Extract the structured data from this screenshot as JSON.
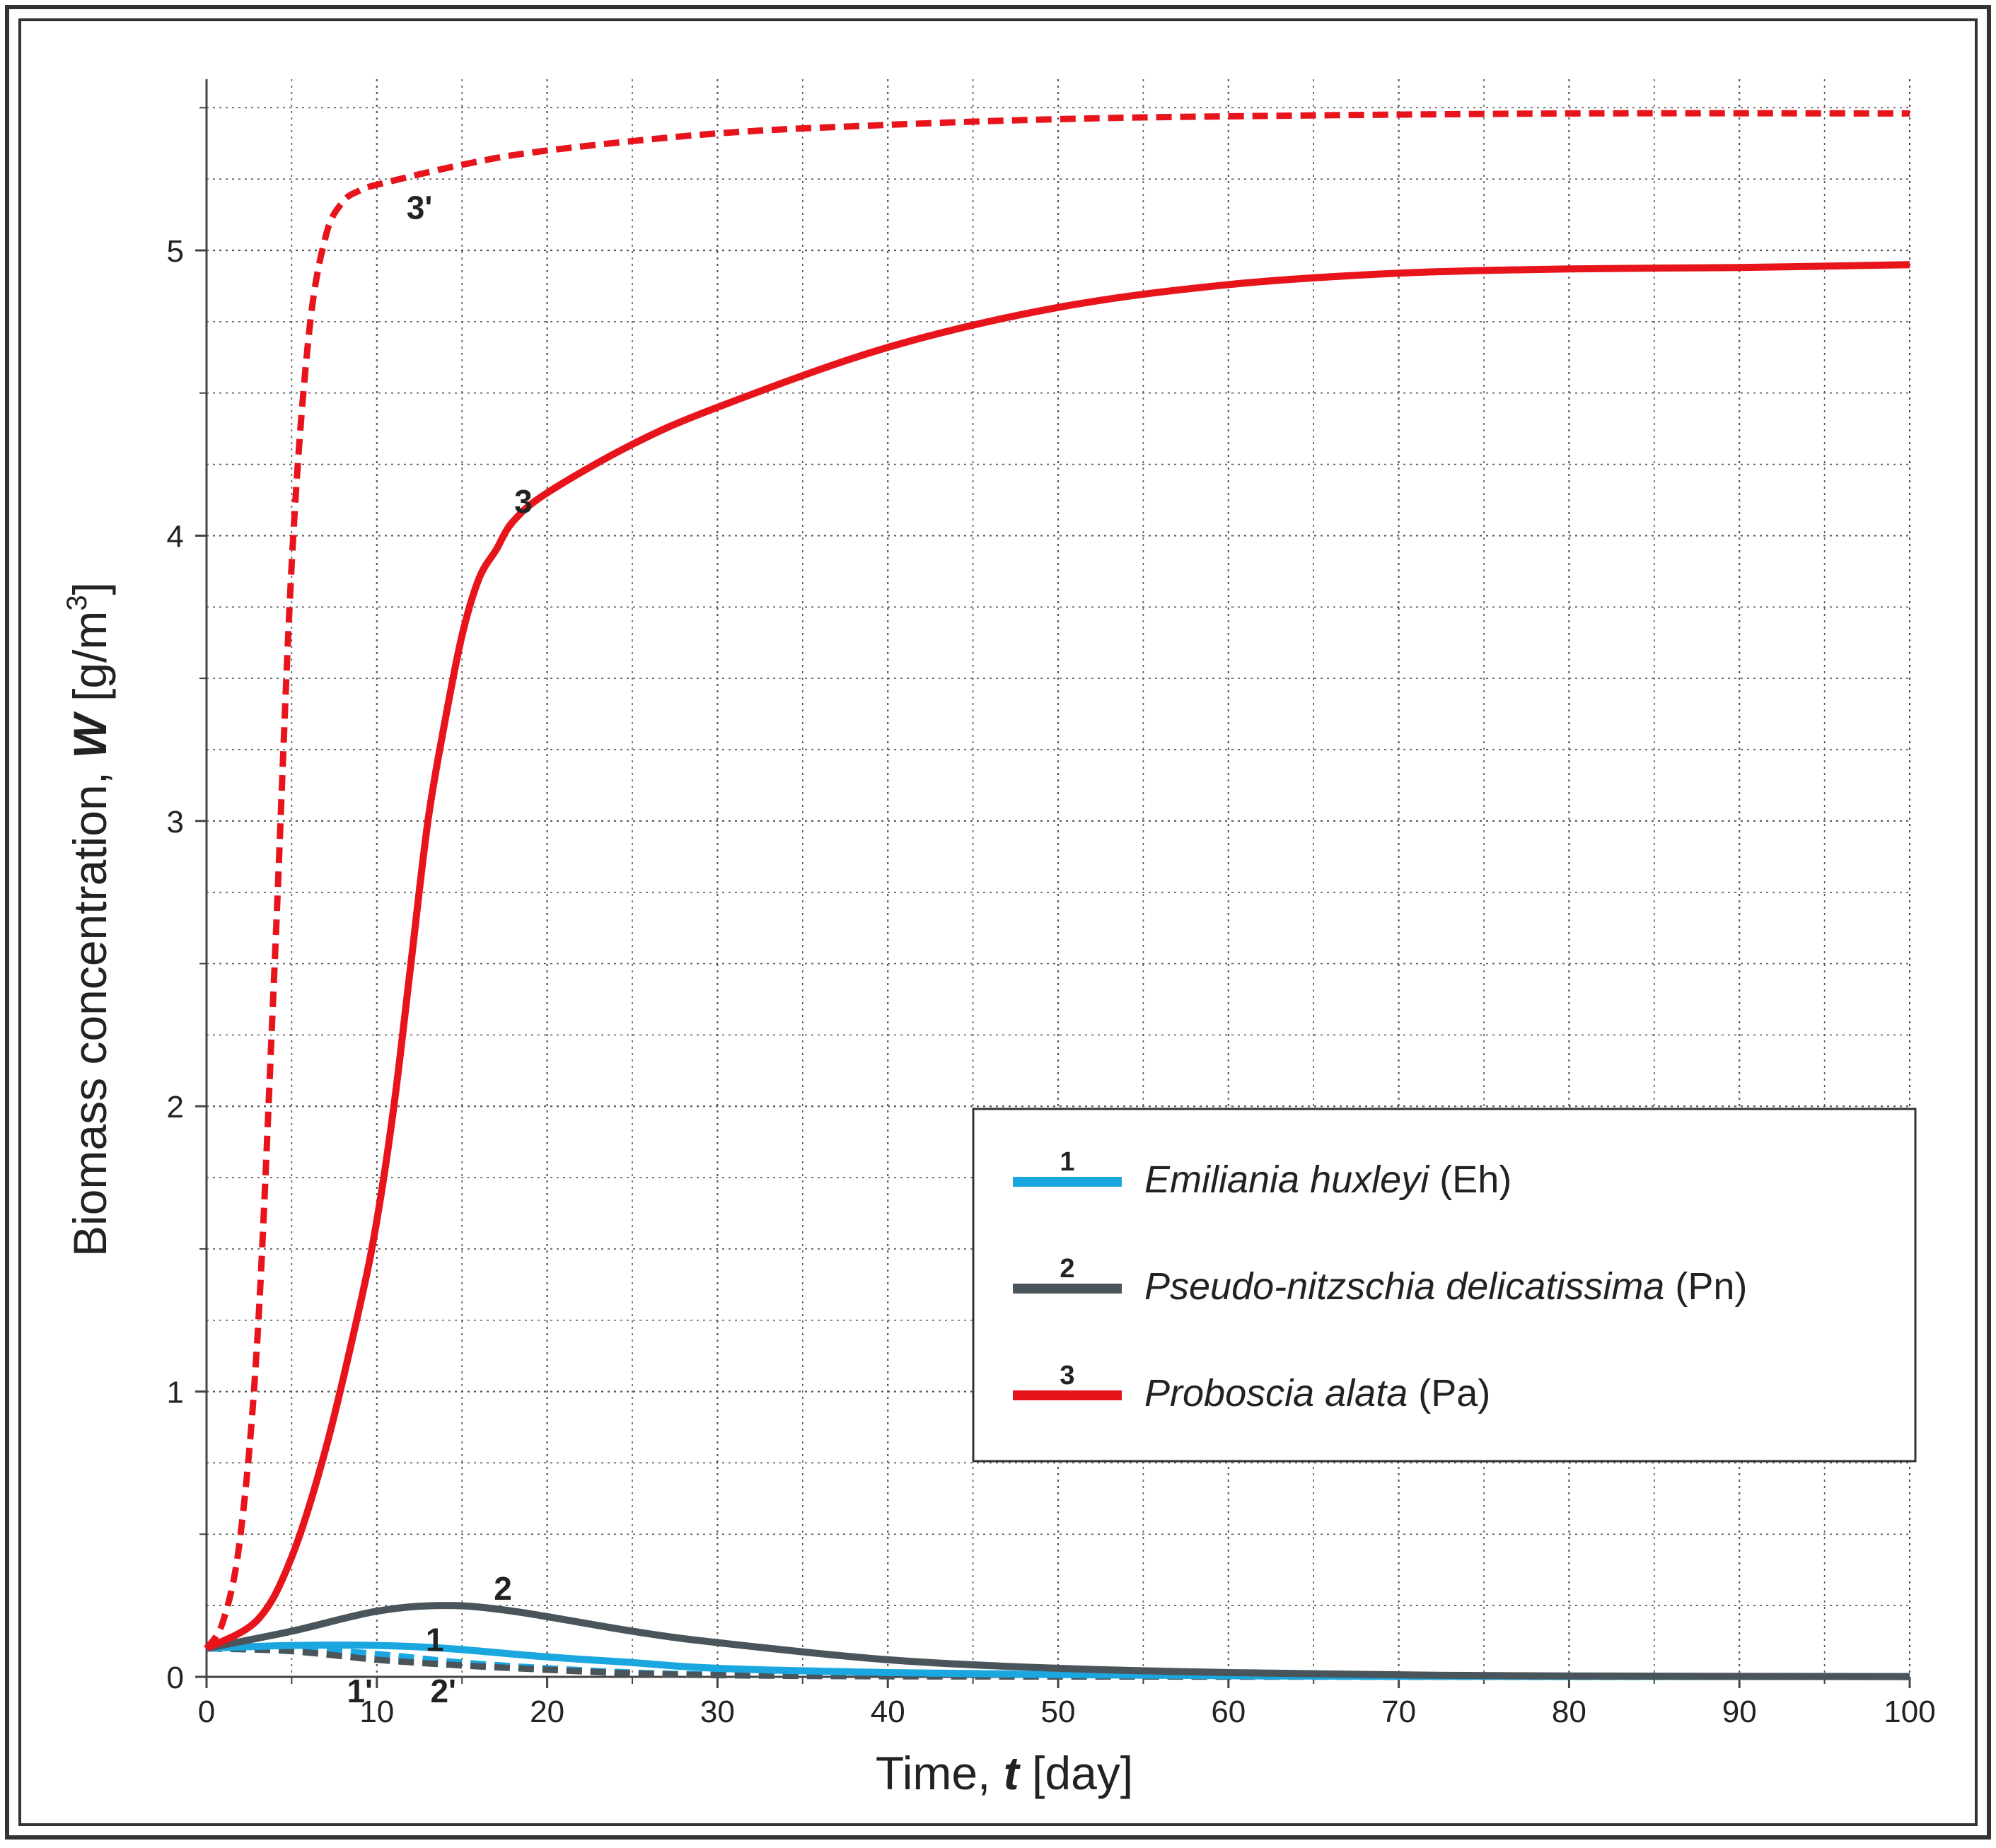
{
  "colors": {
    "series1": "#1aa7e0",
    "series2": "#4a545b",
    "series3": "#e8141b",
    "grid": "#555555",
    "frame": "#333333"
  },
  "legend": {
    "items": [
      {
        "num": "1",
        "italic": "Emiliania huxleyi",
        "plain": " (Eh)"
      },
      {
        "num": "2",
        "italic": "Pseudo-nitzschia delicatissima",
        "plain": " (Pn)"
      },
      {
        "num": "3",
        "italic": "Proboscia alata",
        "plain": " (Pa)"
      }
    ]
  },
  "axes": {
    "x_label_pre": "Time, ",
    "x_label_var": "t",
    "x_label_unit": "  [day]",
    "y_label_pre": "Biomass concentration, ",
    "y_label_var": "W",
    "y_label_unit": "  [g/m",
    "y_label_sup": "3",
    "y_label_close": "]"
  },
  "chart_data": {
    "type": "line",
    "title": "",
    "xlabel": "Time, t [day]",
    "ylabel": "Biomass concentration, W [g/m3]",
    "xlim": [
      0,
      100
    ],
    "ylim": [
      0,
      5.6
    ],
    "x_ticks": [
      0,
      10,
      20,
      30,
      40,
      50,
      60,
      70,
      80,
      90,
      100
    ],
    "y_ticks": [
      0,
      1,
      2,
      3,
      4,
      5
    ],
    "x_minor_step": 5,
    "y_minor_step": 0.25,
    "grid": true,
    "legend_position": "lower-right",
    "series": [
      {
        "name": "1",
        "label": "Emiliania huxleyi (Eh)",
        "color": "#1aa7e0",
        "dash": false,
        "points": [
          [
            0,
            0.1
          ],
          [
            5,
            0.11
          ],
          [
            10,
            0.11
          ],
          [
            14,
            0.1
          ],
          [
            20,
            0.07
          ],
          [
            25,
            0.05
          ],
          [
            30,
            0.03
          ],
          [
            40,
            0.015
          ],
          [
            50,
            0.008
          ],
          [
            60,
            0.004
          ],
          [
            70,
            0.002
          ],
          [
            100,
            0.001
          ]
        ]
      },
      {
        "name": "2",
        "label": "Pseudo-nitzschia delicatissima (Pn)",
        "color": "#4a545b",
        "dash": false,
        "points": [
          [
            0,
            0.1
          ],
          [
            5,
            0.16
          ],
          [
            10,
            0.23
          ],
          [
            14,
            0.25
          ],
          [
            18,
            0.23
          ],
          [
            25,
            0.16
          ],
          [
            30,
            0.12
          ],
          [
            40,
            0.06
          ],
          [
            50,
            0.03
          ],
          [
            60,
            0.015
          ],
          [
            70,
            0.007
          ],
          [
            80,
            0.003
          ],
          [
            100,
            0.001
          ]
        ]
      },
      {
        "name": "3",
        "label": "Proboscia alata (Pa)",
        "color": "#e8141b",
        "dash": false,
        "points": [
          [
            0,
            0.1
          ],
          [
            3,
            0.2
          ],
          [
            5,
            0.42
          ],
          [
            7,
            0.8
          ],
          [
            9,
            1.3
          ],
          [
            10,
            1.6
          ],
          [
            11,
            2.0
          ],
          [
            12,
            2.5
          ],
          [
            13,
            3.0
          ],
          [
            14,
            3.35
          ],
          [
            15,
            3.65
          ],
          [
            16,
            3.85
          ],
          [
            17,
            3.95
          ],
          [
            18,
            4.05
          ],
          [
            20,
            4.15
          ],
          [
            25,
            4.32
          ],
          [
            30,
            4.45
          ],
          [
            40,
            4.66
          ],
          [
            50,
            4.8
          ],
          [
            60,
            4.88
          ],
          [
            70,
            4.92
          ],
          [
            80,
            4.935
          ],
          [
            90,
            4.94
          ],
          [
            100,
            4.95
          ]
        ]
      },
      {
        "name": "1'",
        "label": "",
        "color": "#1aa7e0",
        "dash": true,
        "points": [
          [
            0,
            0.1
          ],
          [
            5,
            0.1
          ],
          [
            10,
            0.08
          ],
          [
            15,
            0.05
          ],
          [
            20,
            0.03
          ],
          [
            25,
            0.015
          ],
          [
            30,
            0.008
          ],
          [
            40,
            0.003
          ],
          [
            60,
            0.001
          ],
          [
            100,
            0.0
          ]
        ]
      },
      {
        "name": "2'",
        "label": "",
        "color": "#4a545b",
        "dash": true,
        "points": [
          [
            0,
            0.1
          ],
          [
            5,
            0.09
          ],
          [
            10,
            0.06
          ],
          [
            15,
            0.04
          ],
          [
            20,
            0.025
          ],
          [
            25,
            0.012
          ],
          [
            30,
            0.006
          ],
          [
            40,
            0.002
          ],
          [
            60,
            0.001
          ],
          [
            100,
            0.0
          ]
        ]
      },
      {
        "name": "3'",
        "label": "",
        "color": "#e8141b",
        "dash": true,
        "points": [
          [
            0,
            0.1
          ],
          [
            1,
            0.2
          ],
          [
            2,
            0.5
          ],
          [
            3,
            1.2
          ],
          [
            4,
            2.5
          ],
          [
            5,
            3.9
          ],
          [
            6,
            4.7
          ],
          [
            7,
            5.05
          ],
          [
            8,
            5.17
          ],
          [
            9,
            5.21
          ],
          [
            10,
            5.23
          ],
          [
            15,
            5.3
          ],
          [
            20,
            5.35
          ],
          [
            30,
            5.41
          ],
          [
            40,
            5.44
          ],
          [
            50,
            5.46
          ],
          [
            60,
            5.47
          ],
          [
            80,
            5.48
          ],
          [
            100,
            5.48
          ]
        ]
      }
    ],
    "annotations": [
      {
        "text": "3'",
        "x": 12.5,
        "y": 5.15
      },
      {
        "text": "3",
        "x": 18.6,
        "y": 4.12
      },
      {
        "text": "2",
        "x": 17.4,
        "y": 0.31
      },
      {
        "text": "1",
        "x": 13.4,
        "y": 0.13
      },
      {
        "text": "1'",
        "x": 9.0,
        "y": -0.05
      },
      {
        "text": "2'",
        "x": 13.9,
        "y": -0.05
      }
    ]
  }
}
